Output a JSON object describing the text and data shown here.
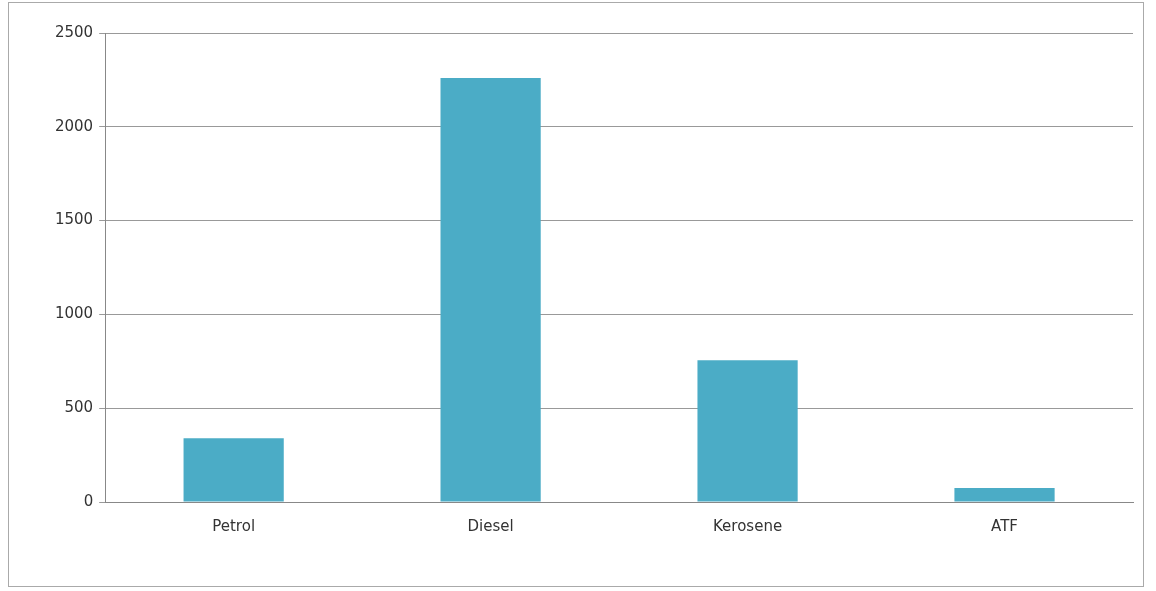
{
  "chart_data": {
    "type": "bar",
    "categories": [
      "Petrol",
      "Diesel",
      "Kerosene",
      "ATF"
    ],
    "values": [
      340,
      2260,
      755,
      75
    ],
    "color": "#4bacc6",
    "ylim": [
      0,
      2500
    ],
    "yticks": [
      0,
      500,
      1000,
      1500,
      2000,
      2500
    ],
    "grid": "y",
    "legend": false
  }
}
